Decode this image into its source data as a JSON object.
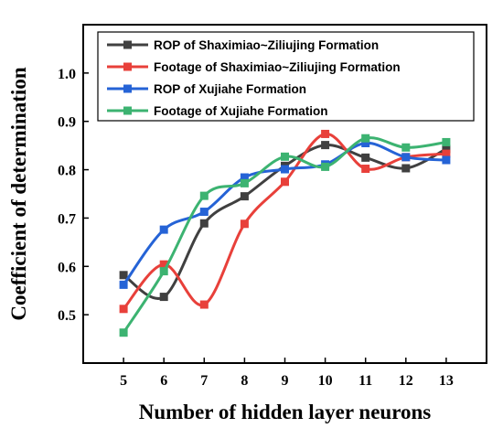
{
  "chart_data": {
    "type": "line",
    "title": "",
    "xlabel": "Number of hidden layer neurons",
    "ylabel": "Coefficient of determination",
    "x": [
      5,
      6,
      7,
      8,
      9,
      10,
      11,
      12,
      13
    ],
    "xlim": [
      4,
      14
    ],
    "ylim": [
      0.4,
      1.1
    ],
    "xticks": [
      "5",
      "6",
      "7",
      "8",
      "9",
      "10",
      "11",
      "12",
      "13"
    ],
    "yticks": [
      {
        "value": 0.5,
        "label": "0.5"
      },
      {
        "value": 0.6,
        "label": "0.6"
      },
      {
        "value": 0.7,
        "label": "0.7"
      },
      {
        "value": 0.8,
        "label": "0.8"
      },
      {
        "value": 0.9,
        "label": "0.9"
      },
      {
        "value": 1.0,
        "label": "1.0"
      }
    ],
    "grid": false,
    "legend_position": "top-left",
    "smooth": true,
    "marker": "square",
    "series": [
      {
        "name": "ROP of Shaximiao~Ziliujing Formation",
        "color": "#404040",
        "values": [
          0.582,
          0.537,
          0.689,
          0.745,
          0.808,
          0.851,
          0.825,
          0.803,
          0.843
        ]
      },
      {
        "name": "Footage of Shaximiao~Ziliujing Formation",
        "color": "#e8403a",
        "values": [
          0.512,
          0.604,
          0.521,
          0.688,
          0.775,
          0.874,
          0.802,
          0.826,
          0.833
        ]
      },
      {
        "name": "ROP of Xujiahe Formation",
        "color": "#2563d6",
        "values": [
          0.562,
          0.676,
          0.713,
          0.784,
          0.801,
          0.811,
          0.855,
          0.826,
          0.82
        ]
      },
      {
        "name": "Footage of Xujiahe Formation",
        "color": "#3cb371",
        "values": [
          0.463,
          0.59,
          0.746,
          0.772,
          0.827,
          0.806,
          0.865,
          0.846,
          0.857
        ]
      }
    ]
  }
}
